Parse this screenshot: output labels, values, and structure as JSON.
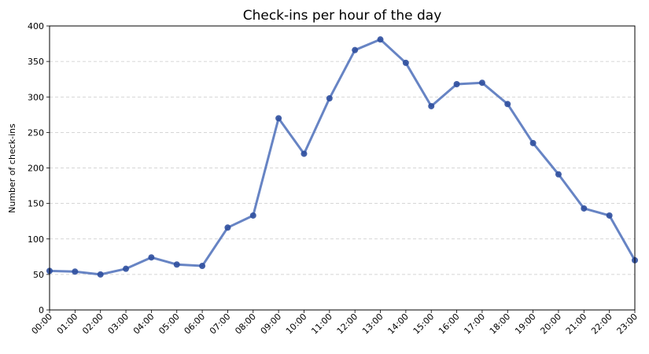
{
  "chart_data": {
    "type": "line",
    "title": "Check-ins per hour of the day",
    "xlabel": "",
    "ylabel": "Number of check-ins",
    "categories": [
      "00:00",
      "01:00",
      "02:00",
      "03:00",
      "04:00",
      "05:00",
      "06:00",
      "07:00",
      "08:00",
      "09:00",
      "10:00",
      "11:00",
      "12:00",
      "13:00",
      "14:00",
      "15:00",
      "16:00",
      "17:00",
      "18:00",
      "19:00",
      "20:00",
      "21:00",
      "22:00",
      "23:00"
    ],
    "series": [
      {
        "values": [
          55,
          54,
          50,
          58,
          74,
          64,
          62,
          116,
          133,
          270,
          220,
          298,
          366,
          381,
          348,
          287,
          318,
          320,
          290,
          235,
          191,
          143,
          133,
          70
        ]
      }
    ],
    "ylim": [
      0,
      400
    ],
    "yticks": [
      0,
      50,
      100,
      150,
      200,
      250,
      300,
      350,
      400
    ],
    "grid": "y-dashed",
    "line_color": "#4c6fba",
    "marker_color": "#2f4f9e"
  }
}
